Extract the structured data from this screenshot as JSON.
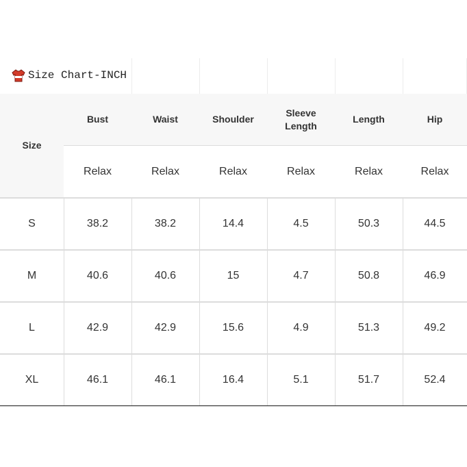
{
  "title": "Size Chart-INCH",
  "table": {
    "header": [
      "Size",
      "Bust",
      "Waist",
      "Shoulder",
      "Sleeve Length",
      "Length",
      "Hip"
    ],
    "subheader": [
      "Relax",
      "Relax",
      "Relax",
      "Relax",
      "Relax",
      "Relax"
    ],
    "rows": [
      [
        "S",
        "38.2",
        "38.2",
        "14.4",
        "4.5",
        "50.3",
        "44.5"
      ],
      [
        "M",
        "40.6",
        "40.6",
        "15",
        "4.7",
        "50.8",
        "46.9"
      ],
      [
        "L",
        "42.9",
        "42.9",
        "15.6",
        "4.9",
        "51.3",
        "49.2"
      ],
      [
        "XL",
        "46.1",
        "46.1",
        "16.4",
        "5.1",
        "51.7",
        "52.4"
      ]
    ]
  }
}
